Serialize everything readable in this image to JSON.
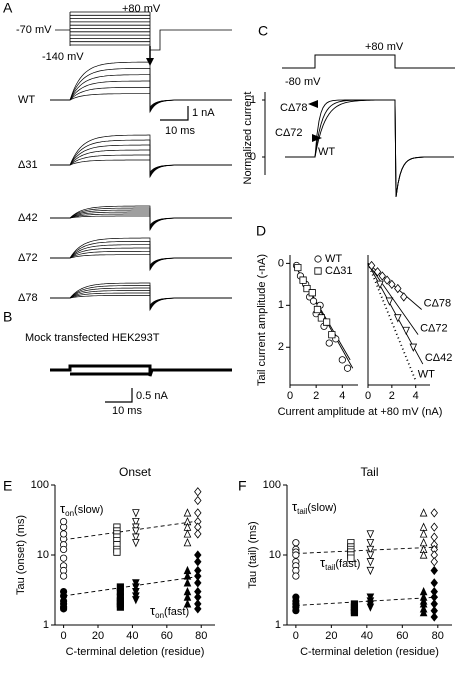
{
  "panels": {
    "A": {
      "label": "A",
      "v_hold": "-70 mV",
      "v_step": "+80 mV",
      "v_tail": "-140 mV",
      "rows": [
        "WT",
        "Δ31",
        "Δ42",
        "Δ72",
        "Δ78"
      ],
      "scale_current": "1 nA",
      "scale_time": "10 ms"
    },
    "B": {
      "label": "B",
      "title": "Mock transfected HEK293T",
      "scale_current": "0.5 nA",
      "scale_time": "10 ms"
    },
    "C": {
      "label": "C",
      "v_start": "-80 mV",
      "v_step": "+80 mV",
      "ylabel": "Normalized current",
      "yticks": [
        0,
        1
      ],
      "traces": [
        "CΔ78",
        "CΔ72",
        "WT"
      ]
    }
  },
  "chart_data": [
    {
      "type": "scatter",
      "panel": "D",
      "ylabel": "Tail current amplitude (-nA)",
      "xlabel": "Current amplitude at +80 mV (nA)",
      "xlim": [
        0,
        5.2
      ],
      "xticks": [
        0,
        2,
        4
      ],
      "ylim": [
        -0.2,
        2.9
      ],
      "yticks": [
        0,
        1,
        2
      ],
      "y_inverted": true,
      "series": [
        {
          "name": "WT",
          "marker": "circle",
          "filled": false,
          "color": "#000",
          "x": [
            0.5,
            0.8,
            1.2,
            1.5,
            1.8,
            2.0,
            2.3,
            2.6,
            3.0,
            3.5,
            4.0,
            4.4
          ],
          "values": [
            0.05,
            0.3,
            0.5,
            0.8,
            0.9,
            1.2,
            1.0,
            1.5,
            1.9,
            1.8,
            2.3,
            2.5
          ]
        },
        {
          "name": "CΔ31",
          "marker": "square",
          "filled": false,
          "color": "#000",
          "x": [
            0.6,
            1.0,
            1.3,
            1.7,
            2.1,
            2.4,
            2.8,
            3.2
          ],
          "values": [
            0.1,
            0.4,
            0.6,
            0.7,
            1.1,
            1.3,
            1.4,
            1.7
          ]
        }
      ],
      "fits": [
        {
          "dash": "solid",
          "x": [
            0.3,
            4.8
          ],
          "values": [
            0,
            2.5
          ]
        },
        {
          "dash": "solid",
          "x": [
            0.3,
            4.6
          ],
          "values": [
            0,
            2.3
          ]
        }
      ]
    },
    {
      "type": "scatter",
      "xlim": [
        0,
        5.2
      ],
      "xticks": [
        0,
        2,
        4
      ],
      "ylim": [
        -0.2,
        2.9
      ],
      "y_inverted": true,
      "series": [
        {
          "marker": "diamond",
          "filled": false,
          "color": "#000",
          "x": [
            0.3,
            0.8,
            1.2,
            1.6,
            2.0,
            2.5,
            3.0
          ],
          "values": [
            0.05,
            0.2,
            0.3,
            0.4,
            0.5,
            0.6,
            0.8
          ]
        },
        {
          "marker": "triangle-down",
          "filled": false,
          "color": "#000",
          "x": [
            1.0,
            1.8,
            2.5,
            3.2,
            3.8
          ],
          "values": [
            0.5,
            0.9,
            1.3,
            1.6,
            2.0
          ]
        }
      ],
      "fits": [
        {
          "label": "CΔ78",
          "dash": "solid",
          "x": [
            0,
            4.5
          ],
          "values": [
            0,
            1.1
          ]
        },
        {
          "label": "CΔ72",
          "dash": "solid",
          "x": [
            0,
            4.2
          ],
          "values": [
            0,
            1.7
          ]
        },
        {
          "label": "CΔ42",
          "dash": "solid",
          "x": [
            0,
            4.6
          ],
          "values": [
            0,
            2.4
          ]
        },
        {
          "label": "WT",
          "dash": "dotted",
          "x": [
            0,
            4.0
          ],
          "values": [
            0,
            2.8
          ]
        }
      ]
    },
    {
      "type": "scatter",
      "panel": "E",
      "title": "Onset",
      "ylabel": "Tau (onset) (ms)",
      "xlabel": "C-terminal deletion (residue)",
      "log_y": true,
      "xlim": [
        -5,
        88
      ],
      "xticks": [
        0,
        20,
        40,
        60,
        80
      ],
      "ylim": [
        1,
        100
      ],
      "yticks": [
        1,
        10,
        100
      ],
      "annotations": [
        {
          "symbol": "τ",
          "sub": "on",
          "text": "(slow)"
        },
        {
          "symbol": "τ",
          "sub": "on",
          "text": "(fast)"
        }
      ],
      "series": [
        {
          "marker": "circle",
          "filled": false,
          "color": "#000",
          "x": [
            0,
            0,
            0,
            0,
            0,
            0,
            0,
            0,
            0,
            0
          ],
          "values": [
            17,
            20,
            25,
            30,
            14,
            12,
            9,
            7,
            6,
            5
          ]
        },
        {
          "marker": "circle",
          "filled": true,
          "color": "#000",
          "x": [
            0,
            0,
            0,
            0,
            0,
            0
          ],
          "values": [
            2.6,
            2.2,
            2,
            1.8,
            3,
            1.7
          ]
        },
        {
          "marker": "square",
          "filled": false,
          "color": "#000",
          "x": [
            31,
            31,
            31,
            31,
            31,
            31,
            31,
            31
          ],
          "values": [
            25,
            22,
            20,
            18,
            16,
            14,
            12,
            11
          ]
        },
        {
          "marker": "square",
          "filled": true,
          "color": "#000",
          "x": [
            33,
            33,
            33,
            33,
            33,
            33
          ],
          "values": [
            3.5,
            3,
            2.5,
            2.2,
            2,
            1.8
          ]
        },
        {
          "marker": "triangle-down",
          "filled": false,
          "color": "#000",
          "x": [
            42,
            42,
            42,
            42,
            42,
            42
          ],
          "values": [
            40,
            30,
            25,
            22,
            18,
            15
          ]
        },
        {
          "marker": "triangle-down",
          "filled": true,
          "color": "#000",
          "x": [
            42,
            42,
            42,
            42,
            42
          ],
          "values": [
            4,
            3.5,
            3,
            2.6,
            2.3
          ]
        },
        {
          "marker": "triangle-up",
          "filled": false,
          "color": "#000",
          "x": [
            72,
            72,
            72,
            72,
            72
          ],
          "values": [
            40,
            30,
            25,
            20,
            15
          ]
        },
        {
          "marker": "triangle-up",
          "filled": true,
          "color": "#000",
          "x": [
            72,
            72,
            72,
            72,
            72,
            72
          ],
          "values": [
            6,
            5,
            4,
            3,
            2.5,
            2
          ]
        },
        {
          "marker": "diamond",
          "filled": false,
          "color": "#000",
          "x": [
            78,
            78,
            78,
            78,
            78,
            78
          ],
          "values": [
            80,
            60,
            40,
            30,
            25,
            20
          ]
        },
        {
          "marker": "diamond",
          "filled": true,
          "color": "#000",
          "x": [
            78,
            78,
            78,
            78,
            78,
            78,
            78,
            78,
            78
          ],
          "values": [
            10,
            8,
            6,
            5,
            4,
            3,
            2.5,
            2,
            1.7
          ]
        }
      ],
      "fits": [
        {
          "dash": "dashed",
          "x": [
            0,
            80
          ],
          "values": [
            16.5,
            31
          ]
        },
        {
          "dash": "dashed",
          "x": [
            0,
            80
          ],
          "values": [
            2.6,
            5
          ]
        }
      ]
    },
    {
      "type": "scatter",
      "panel": "F",
      "title": "Tail",
      "ylabel": "Tau (tail) (ms)",
      "xlabel": "C-terminal deletion (residue)",
      "log_y": true,
      "xlim": [
        -5,
        88
      ],
      "xticks": [
        0,
        20,
        40,
        60,
        80
      ],
      "ylim": [
        1,
        100
      ],
      "yticks": [
        1,
        10,
        100
      ],
      "annotations": [
        {
          "symbol": "τ",
          "sub": "tail",
          "text": "(slow)"
        },
        {
          "symbol": "τ",
          "sub": "tail",
          "text": "(fast)"
        }
      ],
      "series": [
        {
          "marker": "circle",
          "filled": false,
          "color": "#000",
          "x": [
            0,
            0,
            0,
            0,
            0,
            0,
            0,
            0
          ],
          "values": [
            15,
            12,
            11,
            10,
            8,
            7,
            6,
            5
          ]
        },
        {
          "marker": "circle",
          "filled": true,
          "color": "#000",
          "x": [
            0,
            0,
            0,
            0,
            0
          ],
          "values": [
            2.2,
            2,
            1.8,
            1.6,
            2.5
          ]
        },
        {
          "marker": "square",
          "filled": false,
          "color": "#000",
          "x": [
            31,
            31,
            31,
            31,
            31,
            31
          ],
          "values": [
            15,
            13,
            12,
            11,
            10,
            9
          ]
        },
        {
          "marker": "square",
          "filled": true,
          "color": "#000",
          "x": [
            33,
            33,
            33,
            33
          ],
          "values": [
            2,
            1.8,
            1.6,
            1.5
          ]
        },
        {
          "marker": "triangle-down",
          "filled": false,
          "color": "#000",
          "x": [
            42,
            42,
            42,
            42,
            42,
            42
          ],
          "values": [
            20,
            15,
            12,
            10,
            8,
            6
          ]
        },
        {
          "marker": "triangle-down",
          "filled": true,
          "color": "#000",
          "x": [
            42,
            42,
            42,
            42
          ],
          "values": [
            2.5,
            2.2,
            2,
            1.8
          ]
        },
        {
          "marker": "triangle-up",
          "filled": false,
          "color": "#000",
          "x": [
            72,
            72,
            72,
            72,
            72,
            72
          ],
          "values": [
            40,
            25,
            20,
            15,
            12,
            10
          ]
        },
        {
          "marker": "triangle-up",
          "filled": true,
          "color": "#000",
          "x": [
            72,
            72,
            72,
            72,
            72,
            72
          ],
          "values": [
            3,
            2.5,
            2.2,
            2,
            1.7,
            1.5
          ]
        },
        {
          "marker": "diamond",
          "filled": false,
          "color": "#000",
          "x": [
            78,
            78,
            78,
            78,
            78,
            78,
            78
          ],
          "values": [
            40,
            25,
            18,
            14,
            12,
            10,
            8
          ]
        },
        {
          "marker": "diamond",
          "filled": true,
          "color": "#000",
          "x": [
            78,
            78,
            78,
            78,
            78,
            78,
            78
          ],
          "values": [
            6,
            4,
            3,
            2.5,
            2,
            1.6,
            1.3
          ]
        }
      ],
      "fits": [
        {
          "dash": "dashed",
          "x": [
            0,
            80
          ],
          "values": [
            10.5,
            13
          ]
        },
        {
          "dash": "dashed",
          "x": [
            0,
            80
          ],
          "values": [
            1.9,
            2.5
          ]
        }
      ]
    }
  ]
}
